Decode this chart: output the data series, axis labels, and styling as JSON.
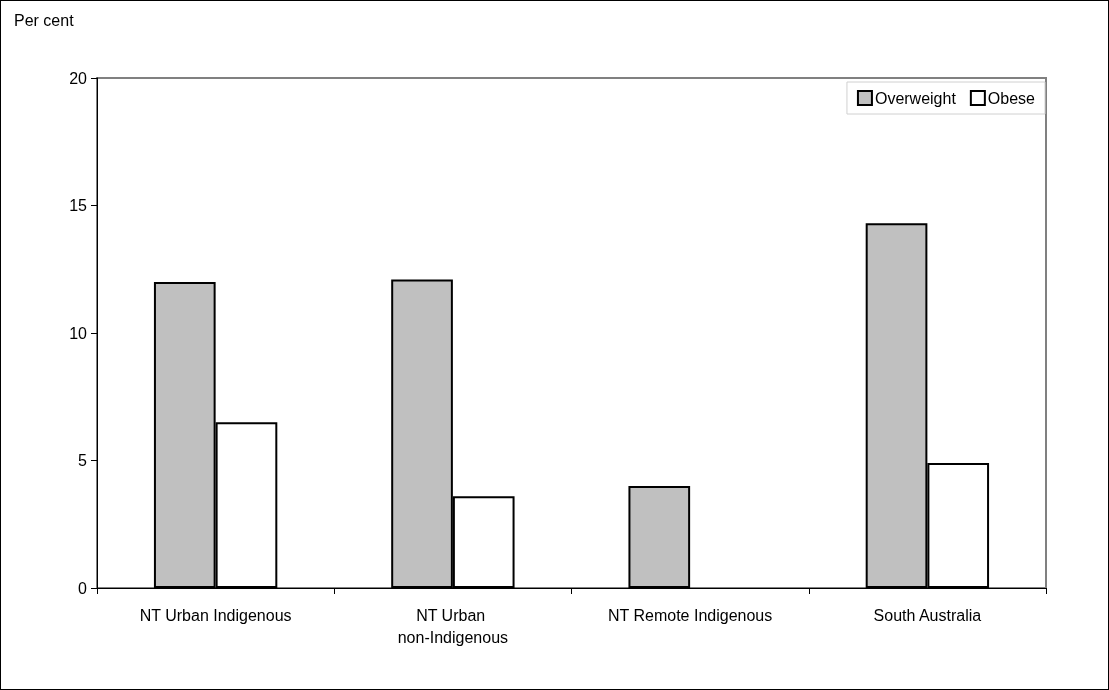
{
  "chart_data": {
    "type": "bar",
    "ylabel": "Per cent",
    "categories": [
      "NT Urban Indigenous",
      "NT Urban non-Indigenous",
      "NT Remote Indigenous",
      "South Australia"
    ],
    "series": [
      {
        "name": "Overweight",
        "color": "#c0c0c0",
        "values": [
          12.0,
          12.1,
          4.0,
          14.3
        ]
      },
      {
        "name": "Obese",
        "color": "#ffffff",
        "values": [
          6.5,
          3.6,
          null,
          4.9
        ]
      }
    ],
    "ylim": [
      0,
      20
    ],
    "yticks": [
      0,
      5,
      10,
      15,
      20
    ],
    "grid": false,
    "legend": "top right"
  }
}
